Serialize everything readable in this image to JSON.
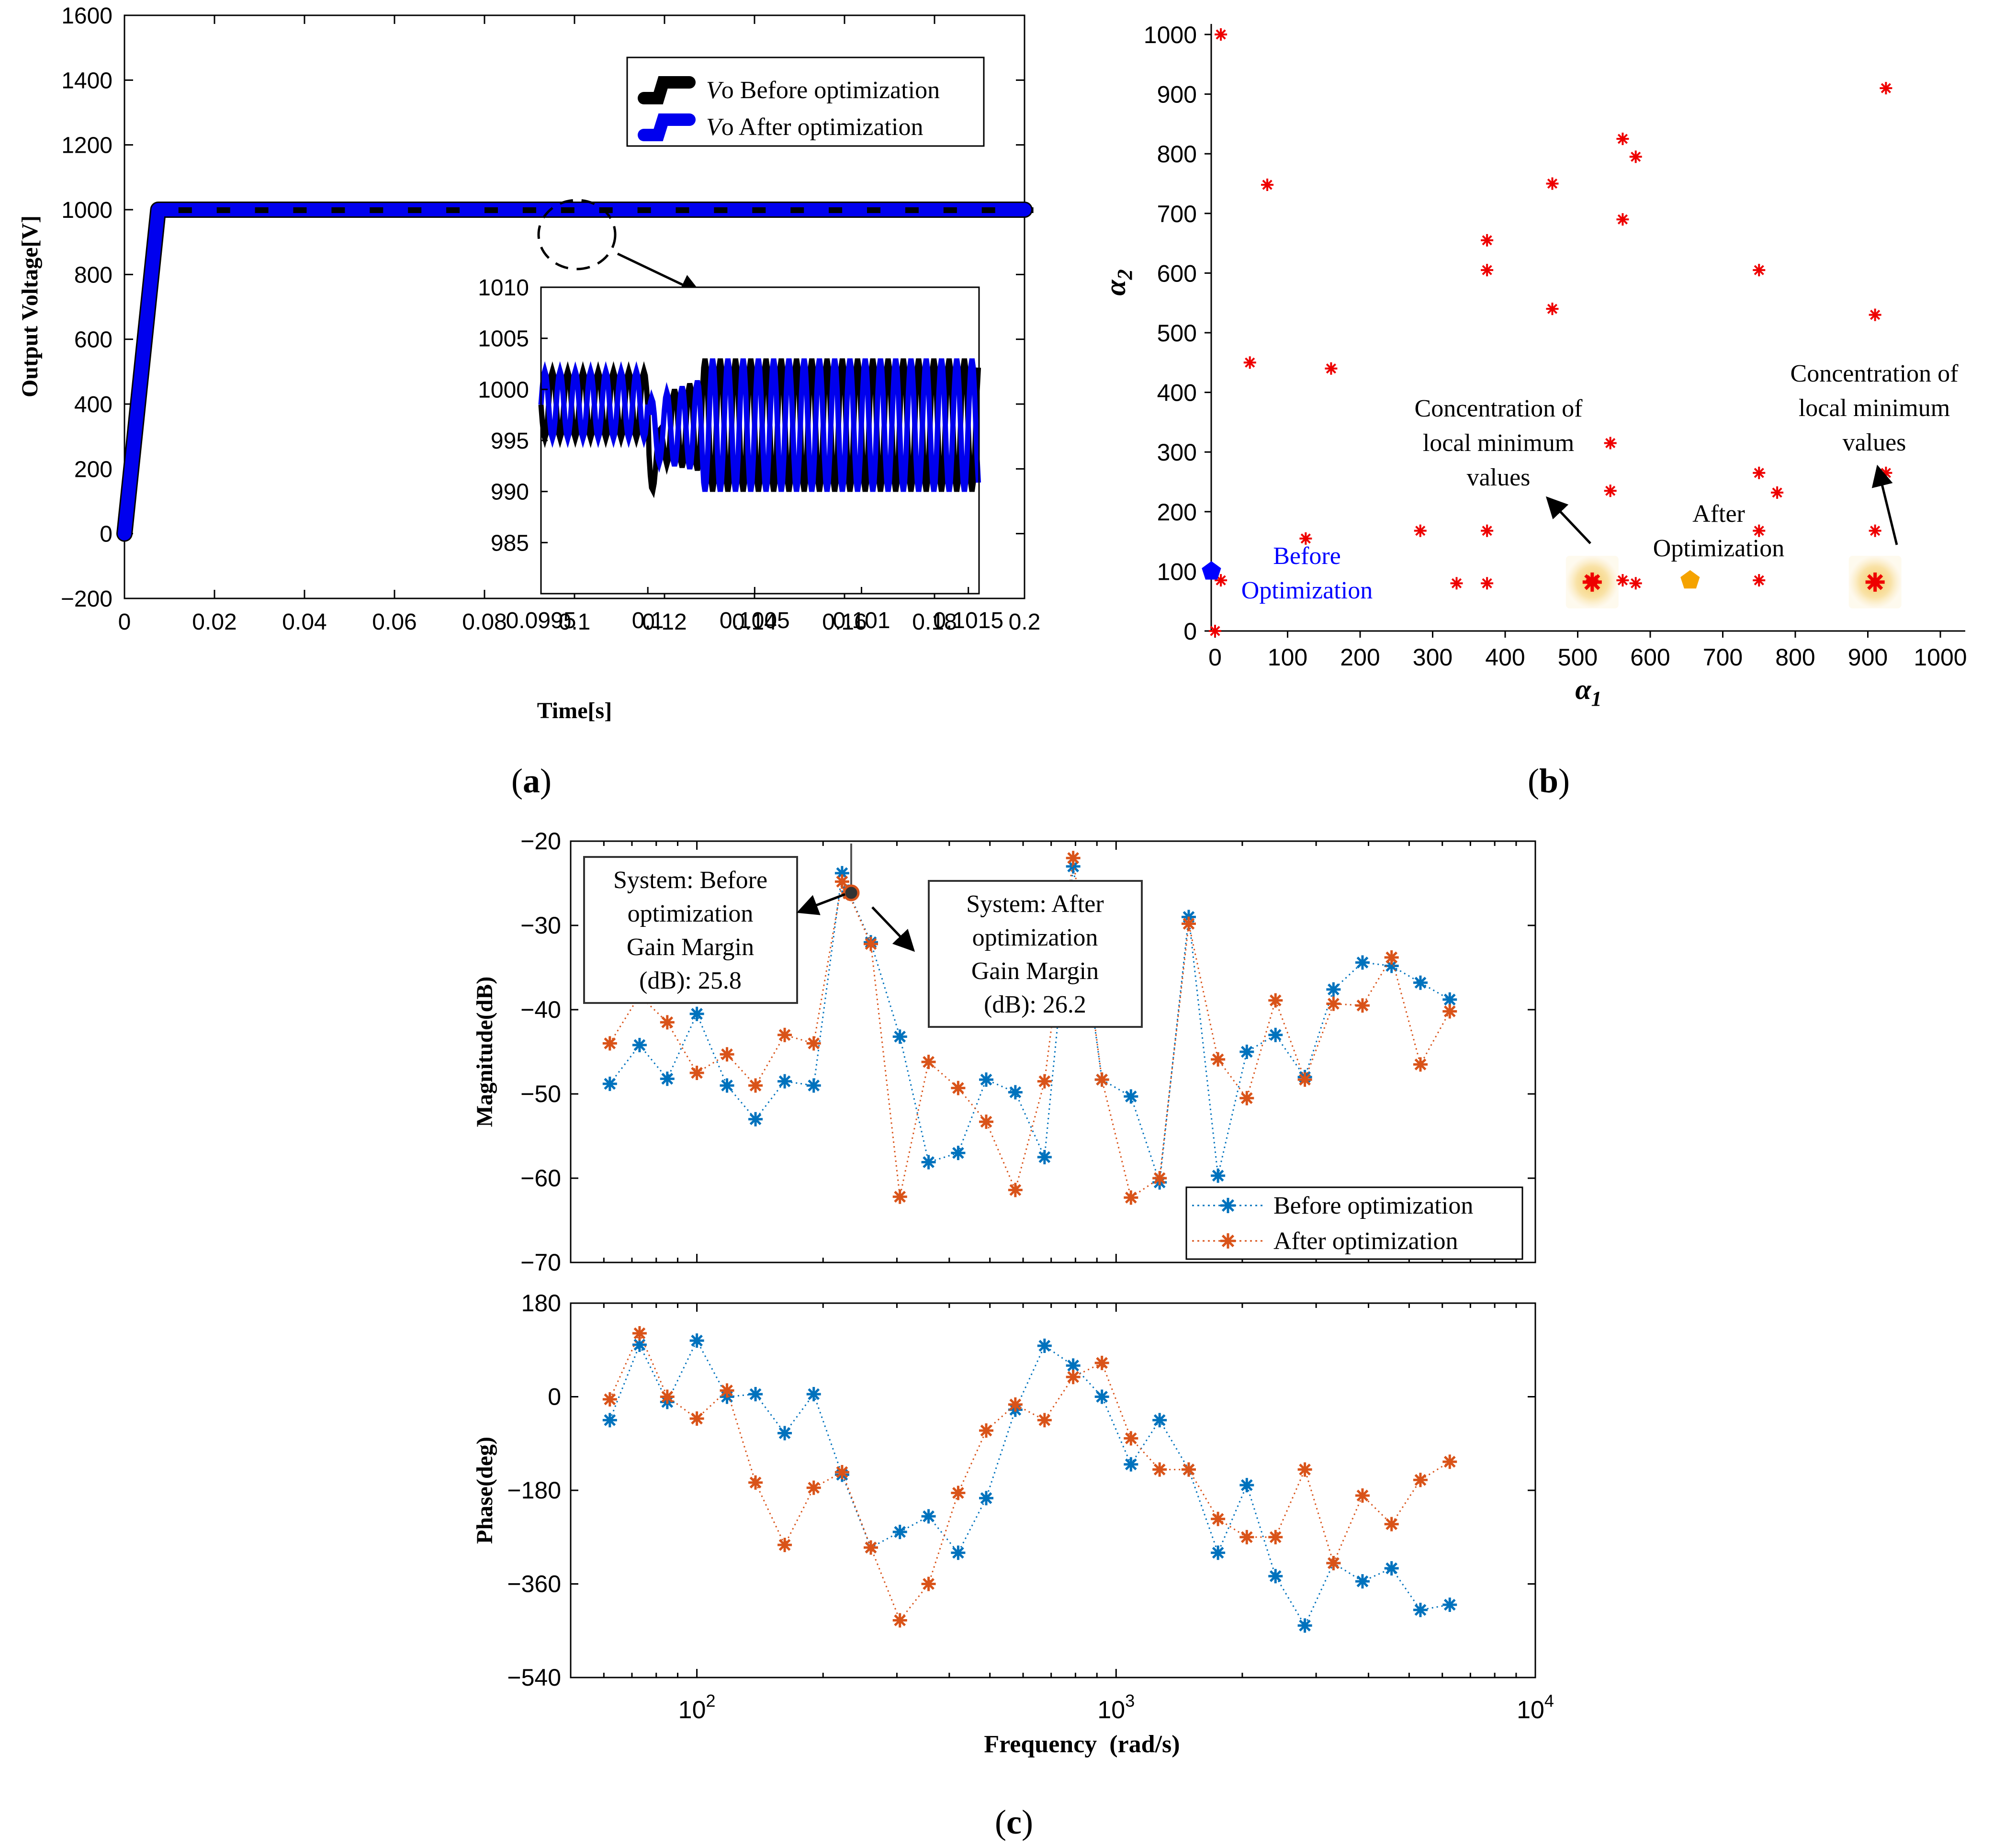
{
  "chart_data": [
    {
      "id": "a",
      "type": "line",
      "caption": "(a)",
      "xlabel": "Time[s]",
      "ylabel": "Output Voltage[V]",
      "xlim": [
        0,
        0.2
      ],
      "ylim": [
        -200,
        1600
      ],
      "xticks": [
        "0",
        "0.02",
        "0.04",
        "0.06",
        "0.08",
        "0.1",
        "0.12",
        "0.14",
        "0.16",
        "0.18",
        "0.2"
      ],
      "yticks": [
        "−200",
        "0",
        "200",
        "400",
        "600",
        "800",
        "1000",
        "1200",
        "1400",
        "1600"
      ],
      "legend_position": "top-right",
      "series": [
        {
          "name": "Vo Before optimization",
          "color": "#000000",
          "x": [
            0,
            0.0075,
            0.2
          ],
          "y": [
            0,
            1000,
            1000
          ]
        },
        {
          "name": "Vo After optimization",
          "color": "#0000ee",
          "x": [
            0,
            0.0075,
            0.2
          ],
          "y": [
            0,
            1000,
            1000
          ]
        }
      ],
      "inset": {
        "xlim": [
          0.0995,
          0.10155
        ],
        "ylim": [
          980,
          1010
        ],
        "xticks": [
          "0.0995",
          "0.1",
          "0.1005",
          "0.101",
          "0.1015"
        ],
        "yticks": [
          "1010",
          "1005",
          "1000",
          "995",
          "990",
          "985"
        ]
      }
    },
    {
      "id": "b",
      "type": "scatter",
      "caption": "(b)",
      "xlabel": "α",
      "xlabel_sub": "1",
      "ylabel": "α",
      "ylabel_sub": "2",
      "xlim": [
        0,
        1000
      ],
      "ylim": [
        0,
        1000
      ],
      "xticks": [
        "0",
        "100",
        "200",
        "300",
        "400",
        "500",
        "600",
        "700",
        "800",
        "900",
        "1000"
      ],
      "yticks": [
        "0",
        "100",
        "200",
        "300",
        "400",
        "500",
        "600",
        "700",
        "800",
        "900",
        "1000"
      ],
      "points": [
        [
          0,
          0
        ],
        [
          8,
          1000
        ],
        [
          8,
          85
        ],
        [
          48,
          450
        ],
        [
          72,
          748
        ],
        [
          125,
          155
        ],
        [
          160,
          440
        ],
        [
          283,
          168
        ],
        [
          333,
          80
        ],
        [
          375,
          655
        ],
        [
          375,
          605
        ],
        [
          375,
          168
        ],
        [
          375,
          80
        ],
        [
          465,
          750
        ],
        [
          465,
          540
        ],
        [
          520,
          85
        ],
        [
          545,
          315
        ],
        [
          545,
          235
        ],
        [
          562,
          825
        ],
        [
          562,
          690
        ],
        [
          562,
          85
        ],
        [
          580,
          795
        ],
        [
          580,
          80
        ],
        [
          750,
          605
        ],
        [
          750,
          265
        ],
        [
          750,
          168
        ],
        [
          750,
          85
        ],
        [
          775,
          232
        ],
        [
          910,
          530
        ],
        [
          910,
          168
        ],
        [
          910,
          82
        ],
        [
          925,
          910
        ],
        [
          925,
          265
        ]
      ],
      "special_points": [
        {
          "label": "Before Optimization",
          "x": -5,
          "y": 100,
          "color": "#0000ff"
        },
        {
          "label": "After Optimization",
          "x": 655,
          "y": 85,
          "color": "#f5a300"
        }
      ],
      "highlights": [
        {
          "x": 520,
          "y": 82
        },
        {
          "x": 910,
          "y": 82
        }
      ],
      "annotations": {
        "before_line1": "Before",
        "before_line2": "Optimization",
        "after_line1": "After",
        "after_line2": "Optimization",
        "conc_left": [
          "Concentration of",
          "local minimum",
          "values"
        ],
        "conc_right": [
          "Concentration of",
          "local minimum",
          "values"
        ]
      }
    },
    {
      "id": "c",
      "type": "line",
      "caption": "(c)",
      "xlabel": "Frequency  (rad/s)",
      "xscale": "log",
      "xlim": [
        50,
        10000
      ],
      "xtick_base": "10",
      "xtick_exps": [
        "2",
        "3",
        "4"
      ],
      "magnitude": {
        "ylabel": "Magnitude(dB)",
        "ylim": [
          -70,
          -20
        ],
        "yticks": [
          "−20",
          "−30",
          "−40",
          "−50",
          "−60",
          "−70"
        ],
        "legend_position": "bottom-right",
        "series": [
          {
            "name": "Before optimization",
            "color": "#0072bd",
            "x": [
              62,
              73,
              85,
              100,
              118,
              138,
              162,
              190,
              222,
              230,
              260,
              305,
              357,
              420,
              490,
              575,
              675,
              790,
              925,
              1085,
              1270,
              1490,
              1750,
              2050,
              2400,
              2820,
              3300,
              3870,
              4540,
              5320,
              6250
            ],
            "y": [
              -48.8,
              -44.2,
              -48.2,
              -40.5,
              -49,
              -53,
              -48.5,
              -49,
              -23.8,
              -26,
              -32,
              -43.2,
              -58.1,
              -57,
              -48.3,
              -49.8,
              -57.5,
              -23,
              -48.3,
              -50.3,
              -60.5,
              -29,
              -59.7,
              -45,
              -43,
              -48,
              -37.6,
              -34.4,
              -34.8,
              -36.8,
              -38.8
            ]
          },
          {
            "name": "After optimization",
            "color": "#d95319",
            "x": [
              62,
              73,
              85,
              100,
              118,
              138,
              162,
              190,
              222,
              230,
              260,
              305,
              357,
              420,
              490,
              575,
              675,
              790,
              925,
              1085,
              1270,
              1490,
              1750,
              2050,
              2400,
              2820,
              3300,
              3870,
              4540,
              5320,
              6250
            ],
            "y": [
              -44,
              -38.3,
              -41.5,
              -47.5,
              -45.3,
              -49,
              -43,
              -44,
              -24.8,
              -26.2,
              -32.2,
              -62.2,
              -46.2,
              -49.3,
              -53.3,
              -61.4,
              -48.5,
              -22,
              -48.3,
              -62.3,
              -60,
              -29.8,
              -45.9,
              -50.5,
              -38.9,
              -48.3,
              -39.3,
              -39.5,
              -33.8,
              -46.5,
              -40.2
            ]
          }
        ]
      },
      "phase": {
        "ylabel": "Phase(deg)",
        "ylim": [
          -540,
          180
        ],
        "yticks": [
          "180",
          "0",
          "−180",
          "−360",
          "−540"
        ],
        "series": [
          {
            "name": "Before optimization",
            "color": "#0072bd",
            "x": [
              62,
              73,
              85,
              100,
              118,
              138,
              162,
              190,
              222,
              260,
              305,
              357,
              420,
              490,
              575,
              675,
              790,
              925,
              1085,
              1270,
              1490,
              1750,
              2050,
              2400,
              2820,
              3300,
              3870,
              4540,
              5320,
              6250
            ],
            "y": [
              -45,
              100,
              -10,
              108,
              0,
              5,
              -70,
              5,
              -150,
              -290,
              -260,
              -230,
              -300,
              -195,
              -25,
              98,
              60,
              0,
              -130,
              -45,
              -140,
              -300,
              -170,
              -345,
              -440,
              -320,
              -355,
              -330,
              -410,
              -400
            ]
          },
          {
            "name": "After optimization",
            "color": "#d95319",
            "x": [
              62,
              73,
              85,
              100,
              118,
              138,
              162,
              190,
              222,
              260,
              305,
              357,
              420,
              490,
              575,
              675,
              790,
              925,
              1085,
              1270,
              1490,
              1750,
              2050,
              2400,
              2820,
              3300,
              3870,
              4540,
              5320,
              6250
            ],
            "y": [
              -5,
              122,
              0,
              -42,
              12,
              -165,
              -285,
              -175,
              -145,
              -290,
              -430,
              -360,
              -185,
              -65,
              -15,
              -45,
              38,
              65,
              -80,
              -140,
              -140,
              -235,
              -270,
              -270,
              -140,
              -320,
              -190,
              -245,
              -160,
              -125
            ]
          }
        ]
      },
      "callouts": {
        "before": [
          "System: Before",
          "optimization",
          "Gain Margin",
          "(dB): 25.8"
        ],
        "after": [
          "System: After",
          "optimization",
          "Gain Margin",
          "(dB): 26.2"
        ]
      }
    }
  ]
}
